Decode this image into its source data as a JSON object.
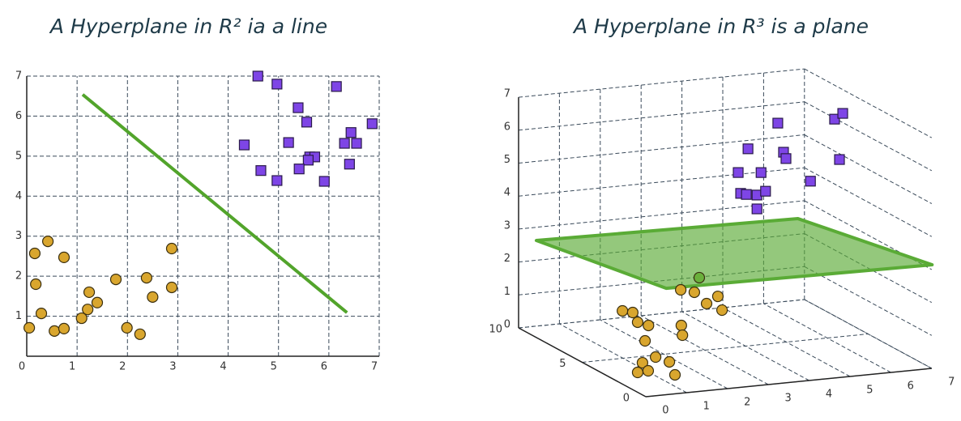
{
  "chart_data": [
    {
      "type": "scatter",
      "title": "A Hyperplane in R² ia a line",
      "xlim": [
        0,
        7
      ],
      "ylim": [
        0,
        7
      ],
      "xticks": [
        0,
        1,
        2,
        3,
        4,
        5,
        6,
        7
      ],
      "yticks": [
        1,
        2,
        3,
        4,
        5,
        6,
        7
      ],
      "grid": true,
      "series": [
        {
          "marker": "circle",
          "color": "#d9a62e",
          "x": [
            0.42,
            0.16,
            0.74,
            2.88,
            1.77,
            2.38,
            0.18,
            1.24,
            2.88,
            1.4,
            2.5,
            1.21,
            0.29,
            1.09,
            0.05,
            0.55,
            0.74,
            1.99,
            2.25
          ],
          "y": [
            2.87,
            2.57,
            2.47,
            2.69,
            1.92,
            1.96,
            1.8,
            1.6,
            1.72,
            1.34,
            1.48,
            1.17,
            1.07,
            0.95,
            0.71,
            0.63,
            0.69,
            0.71,
            0.55
          ]
        },
        {
          "marker": "square",
          "color": "#7e45e6",
          "x": [
            4.59,
            4.97,
            6.15,
            5.39,
            5.56,
            6.86,
            6.44,
            4.32,
            5.2,
            6.31,
            6.55,
            5.62,
            5.72,
            5.59,
            5.41,
            6.41,
            4.65,
            4.97,
            5.91
          ],
          "y": [
            7.0,
            6.8,
            6.74,
            6.21,
            5.85,
            5.81,
            5.59,
            5.28,
            5.34,
            5.32,
            5.32,
            4.98,
            4.98,
            4.9,
            4.68,
            4.8,
            4.64,
            4.39,
            4.37
          ]
        }
      ],
      "line": {
        "color": "#52a42b",
        "x": [
          1.11,
          6.36
        ],
        "y": [
          6.54,
          1.09
        ]
      }
    },
    {
      "type": "scatter3d",
      "title": "A Hyperplane in R³ is a plane",
      "xlim": [
        0,
        7
      ],
      "ylim": [
        0,
        10
      ],
      "zlim": [
        0,
        7
      ],
      "xticks": [
        0,
        1,
        2,
        3,
        4,
        5,
        6,
        7
      ],
      "yticks": [
        0,
        5,
        10
      ],
      "zticks": [
        0,
        1,
        2,
        3,
        4,
        5,
        6,
        7
      ],
      "grid": true,
      "series": [
        {
          "marker": "square",
          "color": "#7e45e6",
          "x": [
            4.79,
            4.06,
            4.93,
            4.99,
            3.82,
            4.38,
            3.88,
            4.02,
            4.28,
            4.49,
            4.28,
            5.59,
            6.18,
            6.38,
            6.3
          ],
          "y": [
            5,
            5,
            5,
            5,
            5,
            5,
            5,
            5,
            5,
            5,
            5,
            5,
            5,
            5,
            5
          ],
          "z": [
            6.67,
            5.98,
            5.77,
            5.57,
            5.29,
            5.22,
            4.65,
            4.6,
            4.55,
            4.64,
            4.13,
            4.81,
            6.62,
            6.77,
            5.38
          ]
        },
        {
          "marker": "circle",
          "color": "#d9a62e",
          "x": [
            1.54,
            1.69,
            1.42,
            1.52,
            2.2,
            1.85,
            0.86,
            3.74,
            4.07,
            3.56,
            3.63,
            3.55,
            1.72,
            1.23,
            1.82,
            0.76,
            1.04,
            1.44
          ],
          "y": [
            6.78,
            6.45,
            5.2,
            4.67,
            4.27,
            3.06,
            2.82,
            8.19,
            7.4,
            6.65,
            5.66,
            8.65,
            4.75,
            4.21,
            3.99,
            3.08,
            3.15,
            2.33
          ],
          "z": [
            1,
            1,
            1,
            1,
            1,
            1,
            1,
            1,
            1,
            1,
            1,
            1,
            0,
            0,
            0,
            0,
            0,
            0
          ]
        },
        {
          "marker": "circle",
          "color": "#6ab03c",
          "x": [
            3.77
          ],
          "y": [
            7.9
          ],
          "z": [
            1.5
          ]
        }
      ],
      "plane": {
        "color": "#5aab36",
        "x": [
          0.56,
          6.81,
          7.82,
          1.42
        ],
        "y": [
          10.4,
          9.9,
          2.6,
          2.95
        ],
        "z": [
          2.5,
          2.5,
          2.5,
          2.5
        ]
      }
    }
  ]
}
